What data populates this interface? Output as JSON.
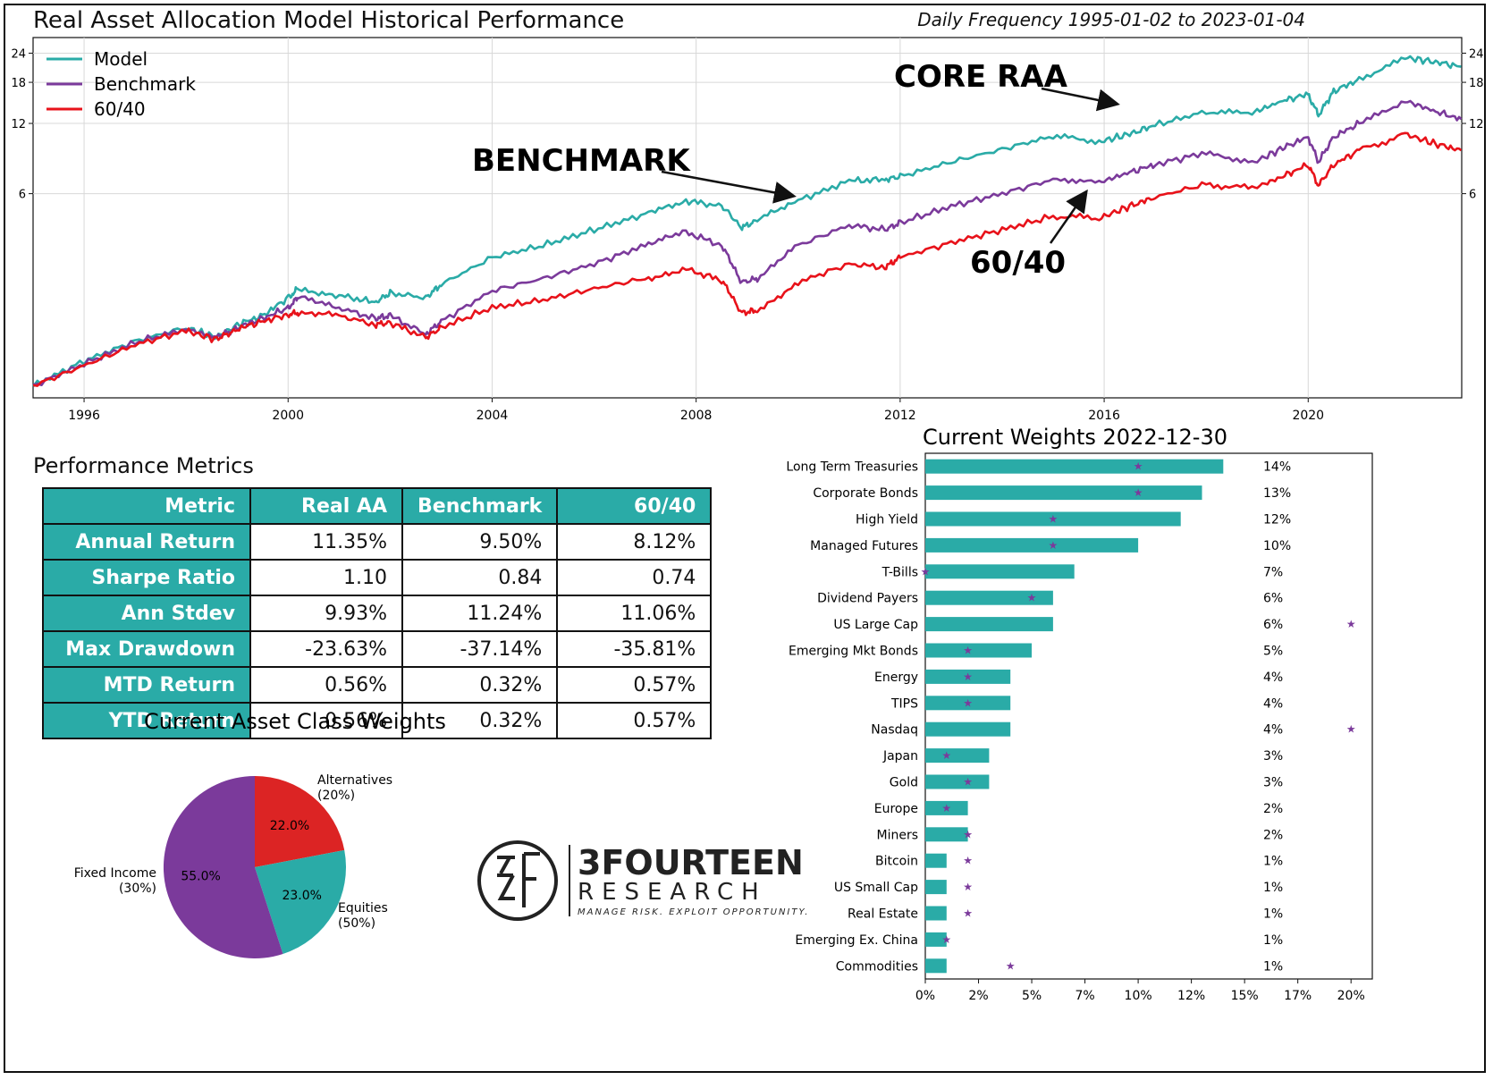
{
  "header": {
    "title": "Real Asset Allocation Model Historical Performance",
    "subtitle": "Daily Frequency 1995-01-02 to 2023-01-04"
  },
  "line_chart_annotations": {
    "core_raa": "CORE RAA",
    "benchmark": "BENCHMARK",
    "sixty_forty": "60/40"
  },
  "colors": {
    "model": "#2aaba7",
    "benchmark": "#7b3a9b",
    "sixty_forty": "#e8121a",
    "teal": "#2aaba7",
    "purple": "#7b3a9b",
    "red": "#dc2424"
  },
  "metrics": {
    "title": "Performance Metrics",
    "headers": [
      "Metric",
      "Real AA",
      "Benchmark",
      "60/40"
    ],
    "rows": [
      [
        "Annual Return",
        "11.35%",
        "9.50%",
        "8.12%"
      ],
      [
        "Sharpe Ratio",
        "1.10",
        "0.84",
        "0.74"
      ],
      [
        "Ann Stdev",
        "9.93%",
        "11.24%",
        "11.06%"
      ],
      [
        "Max Drawdown",
        "-23.63%",
        "-37.14%",
        "-35.81%"
      ],
      [
        "MTD Return",
        "0.56%",
        "0.32%",
        "0.57%"
      ],
      [
        "YTD Return",
        "0.56%",
        "0.32%",
        "0.57%"
      ]
    ]
  },
  "logo": {
    "name": "3FOURTEEN",
    "line2": "RESEARCH",
    "tagline": "MANAGE RISK. EXPLOIT OPPORTUNITY."
  },
  "chart_data": [
    {
      "type": "line",
      "title": "",
      "xlabel": "",
      "ylabel": "",
      "y_scale": "log",
      "x_ticks": [
        "1996",
        "2000",
        "2004",
        "2008",
        "2012",
        "2016",
        "2020"
      ],
      "y_ticks": [
        "6",
        "12",
        "18",
        "24"
      ],
      "xlim": [
        1995.0,
        2023.01
      ],
      "ylim": [
        0.8,
        28
      ],
      "grid": true,
      "legend_position": "top-left",
      "x": [
        1995.0,
        1996.0,
        1997.0,
        1998.0,
        1998.6,
        1999.0,
        1999.5,
        2000.0,
        2000.2,
        2001.0,
        2001.7,
        2002.0,
        2002.7,
        2003.0,
        2004.0,
        2005.0,
        2006.0,
        2007.0,
        2007.8,
        2008.5,
        2008.9,
        2009.2,
        2010.0,
        2011.0,
        2011.7,
        2012.0,
        2013.0,
        2014.0,
        2015.0,
        2015.9,
        2016.5,
        2017.0,
        2018.0,
        2018.9,
        2019.5,
        2020.0,
        2020.2,
        2020.5,
        2021.0,
        2021.9,
        2022.5,
        2023.0
      ],
      "series": [
        {
          "name": "Model",
          "values": [
            0.9,
            1.15,
            1.4,
            1.6,
            1.45,
            1.65,
            1.8,
            2.15,
            2.35,
            2.2,
            2.05,
            2.25,
            2.15,
            2.45,
            3.2,
            3.6,
            4.2,
            4.9,
            5.6,
            5.3,
            4.3,
            4.6,
            5.6,
            6.8,
            6.9,
            7.1,
            8.2,
            9.3,
            10.6,
            10.0,
            10.8,
            11.8,
            13.5,
            13.3,
            15.0,
            16.0,
            13.0,
            16.5,
            18.5,
            23.0,
            22.0,
            21.0
          ]
        },
        {
          "name": "Benchmark",
          "values": [
            0.9,
            1.12,
            1.38,
            1.58,
            1.45,
            1.6,
            1.75,
            1.95,
            2.15,
            1.95,
            1.75,
            1.8,
            1.5,
            1.7,
            2.3,
            2.6,
            3.0,
            3.6,
            4.1,
            3.6,
            2.5,
            2.6,
            3.6,
            4.4,
            4.2,
            4.5,
            5.3,
            6.0,
            6.9,
            6.7,
            7.4,
            8.0,
            9.0,
            8.1,
            9.4,
            10.5,
            8.2,
            10.5,
            12.0,
            15.0,
            13.5,
            12.5
          ]
        },
        {
          "name": "60/40",
          "values": [
            0.9,
            1.1,
            1.35,
            1.55,
            1.42,
            1.58,
            1.7,
            1.82,
            1.85,
            1.8,
            1.65,
            1.68,
            1.45,
            1.6,
            1.95,
            2.1,
            2.35,
            2.6,
            2.85,
            2.55,
            1.85,
            1.9,
            2.5,
            3.0,
            2.9,
            3.2,
            3.7,
            4.2,
            4.8,
            4.7,
            5.3,
            5.8,
            6.6,
            6.3,
            7.1,
            8.0,
            6.5,
            8.0,
            9.2,
            10.8,
            9.8,
            9.2
          ]
        }
      ]
    },
    {
      "type": "pie",
      "title": "Current Asset Class Weights",
      "slices": [
        {
          "label": "Alternatives\n(20%)",
          "pct_label": "22.0%",
          "value": 22.0,
          "color": "#dc2424"
        },
        {
          "label": "Equities\n(50%)",
          "pct_label": "23.0%",
          "value": 23.0,
          "color": "#2aaba7"
        },
        {
          "label": "Fixed Income\n(30%)",
          "pct_label": "55.0%",
          "value": 55.0,
          "color": "#7b3a9b"
        }
      ]
    },
    {
      "type": "bar",
      "orientation": "horizontal",
      "title": "Current Weights 2022-12-30",
      "x_ticks": [
        "0%",
        "2%",
        "5%",
        "7%",
        "10%",
        "12%",
        "15%",
        "17%",
        "20%"
      ],
      "xlim": [
        0,
        21
      ],
      "categories": [
        "Long Term Treasuries",
        "Corporate Bonds",
        "High Yield",
        "Managed Futures",
        "T-Bills",
        "Dividend Payers",
        "US Large Cap",
        "Emerging Mkt Bonds",
        "Energy",
        "TIPS",
        "Nasdaq",
        "Japan",
        "Gold",
        "Europe",
        "Miners",
        "Bitcoin",
        "US Small Cap",
        "Real Estate",
        "Emerging Ex. China",
        "Commodities"
      ],
      "values": [
        14,
        13,
        12,
        10,
        7,
        6,
        6,
        5,
        4,
        4,
        4,
        3,
        3,
        2,
        2,
        1,
        1,
        1,
        1,
        1
      ],
      "value_labels": [
        "14%",
        "13%",
        "12%",
        "10%",
        "7%",
        "6%",
        "6%",
        "5%",
        "4%",
        "4%",
        "4%",
        "3%",
        "3%",
        "2%",
        "2%",
        "1%",
        "1%",
        "1%",
        "1%",
        "1%"
      ],
      "markers": [
        10,
        10,
        6,
        6,
        0,
        5,
        20,
        2,
        2,
        2,
        20,
        1,
        2,
        1,
        2,
        2,
        2,
        2,
        1,
        4
      ]
    }
  ]
}
